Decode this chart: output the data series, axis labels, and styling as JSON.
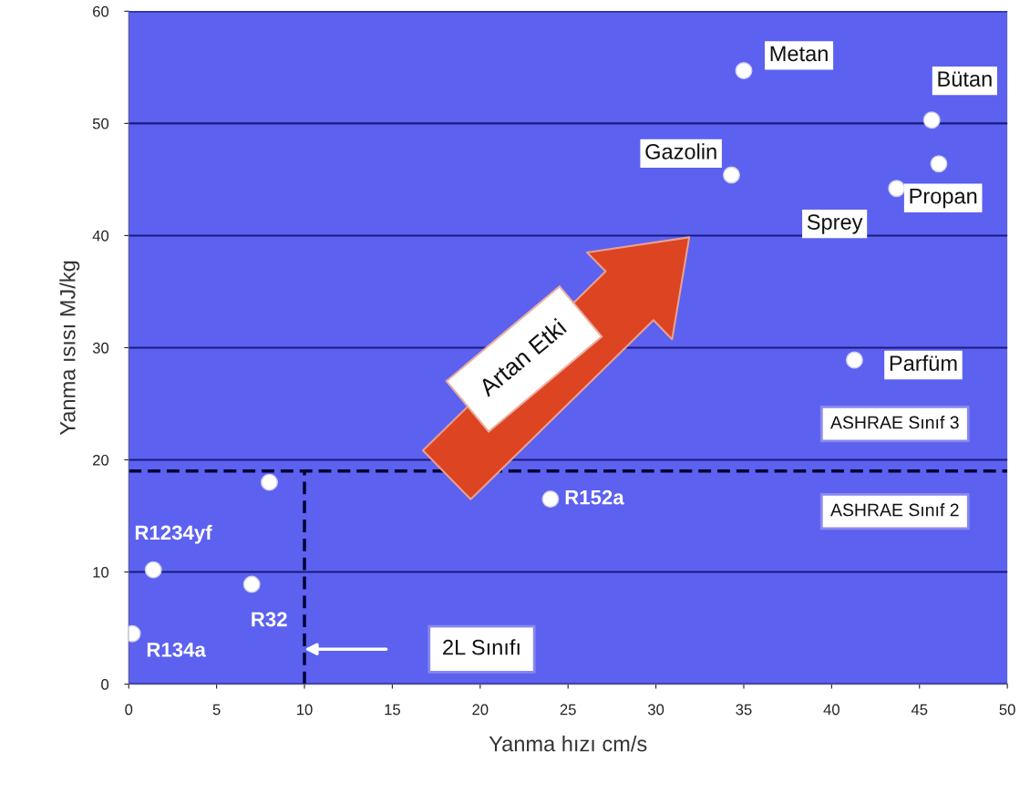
{
  "chart_data": {
    "type": "scatter",
    "xlabel": "Yanma hızı cm/s",
    "ylabel": "Yanma ısısı MJ/kg",
    "x": [
      35.0,
      45.7,
      34.3,
      46.1,
      43.7,
      41.3,
      24.0,
      8.0,
      1.4,
      7.0,
      0.2
    ],
    "series": [
      {
        "color": "#ffffff",
        "values": [
          54.7,
          50.3,
          45.4,
          46.4,
          44.2,
          28.9,
          16.5,
          18.0,
          10.2,
          8.9,
          4.5
        ]
      }
    ],
    "marker": "circle",
    "xlim": [
      0,
      50
    ],
    "xticks": [
      0,
      5,
      10,
      15,
      20,
      25,
      30,
      35,
      40,
      45,
      50
    ],
    "ylim": [
      0,
      60
    ],
    "yticks": [
      0,
      10,
      20,
      30,
      40,
      50,
      60
    ],
    "grid": "y",
    "ref_lines": [
      {
        "axis": "y",
        "value": 19,
        "line_style": "dashed",
        "color": "#000033"
      },
      {
        "axis": "x",
        "value": 10,
        "label": "2L Sınıfı",
        "line_style": "dashed",
        "color": "#000033"
      }
    ],
    "annotations": [
      {
        "text": "Metan",
        "x": 35.0,
        "y": 54.7
      },
      {
        "text": "Bütan",
        "x": 45.7,
        "y": 50.3
      },
      {
        "text": "Gazolin",
        "x": 34.3,
        "y": 45.4
      },
      {
        "text": "Propan",
        "x": 46.1,
        "y": 46.4
      },
      {
        "text": "Sprey",
        "x": 43.7,
        "y": 44.2
      },
      {
        "text": "Parfüm",
        "x": 41.3,
        "y": 28.9
      },
      {
        "text": "R152a",
        "x": 24.0,
        "y": 16.5
      },
      {
        "text": "R1234yf",
        "x": 1.4,
        "y": 10.2
      },
      {
        "text": "R32",
        "x": 7.0,
        "y": 8.9
      },
      {
        "text": "R134a",
        "x": 0.2,
        "y": 4.5
      },
      "Artan Etki",
      "ASHRAE Sınıf 3",
      "ASHRAE Sınıf 2"
    ]
  }
}
